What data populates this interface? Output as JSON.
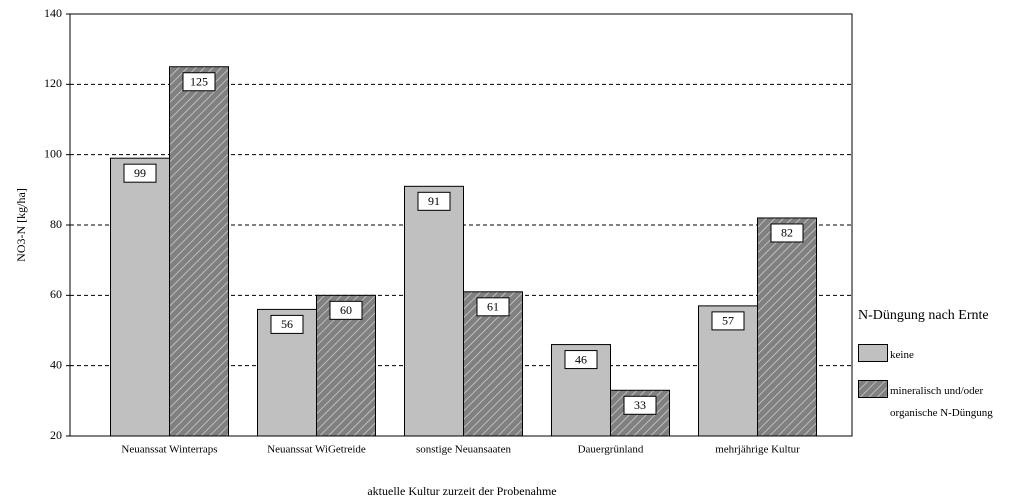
{
  "chart_data": {
    "type": "bar",
    "y_label": "NO3-N [kg/ha]",
    "x_label": "aktuelle Kultur zurzeit der Probenahme",
    "legend_title": "N-Düngung nach Ernte",
    "categories": [
      "Neuanssat Winterraps",
      "Neuanssat WiGetreide",
      "sonstige Neuansaaten",
      "Dauergrünland",
      "mehrjährige Kultur"
    ],
    "series": [
      {
        "name": "keine",
        "color": "#c0c0c0",
        "values": [
          99,
          56,
          91,
          46,
          57
        ]
      },
      {
        "name": "mineralisch und/oder organische N-Düngung",
        "color": "#808080",
        "pattern": "hatch",
        "values": [
          125,
          60,
          61,
          33,
          82
        ]
      }
    ],
    "ylim": [
      20,
      140
    ],
    "yticks": [
      20,
      40,
      60,
      80,
      100,
      120,
      140
    ],
    "grid": true
  }
}
